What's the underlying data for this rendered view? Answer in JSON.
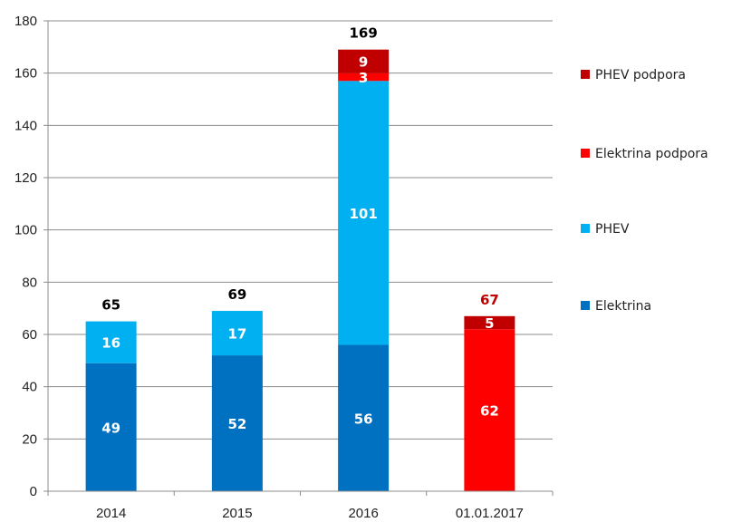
{
  "chart_data": {
    "type": "bar",
    "stacked": true,
    "categories": [
      "2014",
      "2015",
      "2016",
      "01.01.2017"
    ],
    "series": [
      {
        "name": "Elektrina",
        "color": "#0070C0",
        "values": [
          49,
          52,
          56,
          0
        ]
      },
      {
        "name": "PHEV",
        "color": "#00B0F0",
        "values": [
          16,
          17,
          101,
          0
        ]
      },
      {
        "name": "Elektrina podpora",
        "color": "#FF0000",
        "values": [
          0,
          0,
          3,
          62
        ]
      },
      {
        "name": "PHEV podpora",
        "color": "#C00000",
        "values": [
          0,
          0,
          9,
          5
        ]
      }
    ],
    "totals": [
      65,
      69,
      169,
      67
    ],
    "total_colors": [
      "#000000",
      "#000000",
      "#000000",
      "#C00000"
    ],
    "ylim": [
      0,
      180
    ],
    "yticks": [
      0,
      20,
      40,
      60,
      80,
      100,
      120,
      140,
      160,
      180
    ],
    "grid": true,
    "legend": "right",
    "legend_order": [
      "PHEV podpora",
      "Elektrina podpora",
      "PHEV",
      "Elektrina"
    ]
  }
}
